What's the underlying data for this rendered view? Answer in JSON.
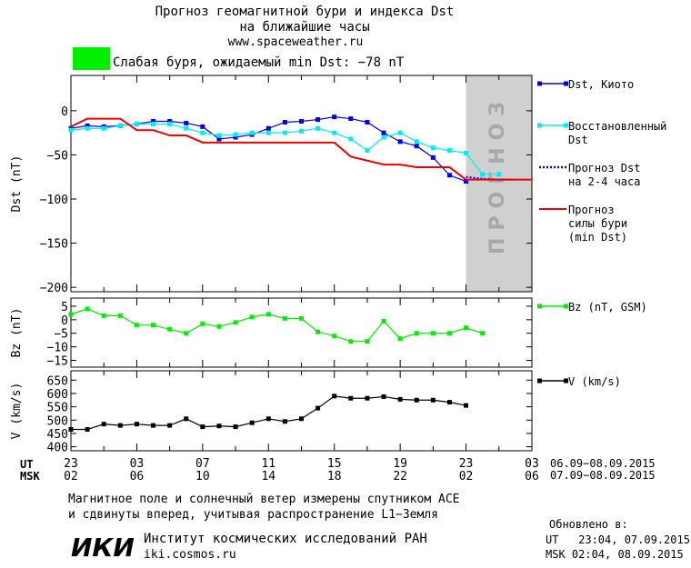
{
  "header": {
    "title_line1": "Прогноз геомагнитной бури и индекса Dst",
    "title_line2": "на ближайшие часы",
    "url": "www.spaceweather.ru",
    "status_text": "Слабая буря, ожидаемый min Dst: −78 nT",
    "status_color": "#00ee00"
  },
  "footer": {
    "note_line1": "Магнитное поле и солнечный ветер измерены спутником ACE",
    "note_line2": "и сдвинуты вперед, учитывая распространение L1−Земля",
    "institute_logo": "ИКИ",
    "institute_name": "Институт космических исследований РАН",
    "institute_url": "iki.cosmos.ru",
    "updated_label": "Обновлено в:",
    "updated_ut": "UT   23:04, 07.09.2015",
    "updated_msk": "MSK 02:04, 08.09.2015"
  },
  "time_axis": {
    "ut_label": "UT",
    "msk_label": "MSK",
    "ut_ticks": [
      "23",
      "03",
      "07",
      "11",
      "15",
      "19",
      "23",
      "03"
    ],
    "msk_ticks": [
      "02",
      "06",
      "10",
      "14",
      "18",
      "22",
      "02",
      "06"
    ],
    "ut_range": "06.09−08.09.2015",
    "msk_range": "07.09−08.09.2015"
  },
  "chart_data": [
    {
      "type": "line",
      "ylabel": "Dst (nT)",
      "xlim": [
        0,
        28
      ],
      "ylim": [
        -205,
        40
      ],
      "yticks": [
        0,
        -50,
        -100,
        -150,
        -200
      ],
      "ytick_labels": [
        "0",
        "−50",
        "−100",
        "−150",
        "−200"
      ],
      "forecast_region": {
        "x_start": 24,
        "x_end": 28,
        "label": "ПРОГНОЗ",
        "color": "#d0d0d0"
      },
      "series": [
        {
          "name": "Dst, Киото",
          "color": "#0000ee",
          "style": "solid-square",
          "x": [
            0,
            1,
            2,
            3,
            4,
            5,
            6,
            7,
            8,
            9,
            10,
            11,
            12,
            13,
            14,
            15,
            16,
            17,
            18,
            19,
            20,
            21,
            22,
            23,
            24
          ],
          "y": [
            -20,
            -17,
            -18,
            -17,
            -15,
            -12,
            -12,
            -14,
            -18,
            -32,
            -30,
            -27,
            -20,
            -13,
            -12,
            -10,
            -7,
            -9,
            -13,
            -25,
            -35,
            -40,
            -53,
            -73,
            -80
          ]
        },
        {
          "name": "Восстановленный Dst",
          "color": "#00eeee",
          "style": "solid-square",
          "x": [
            0,
            1,
            2,
            3,
            4,
            5,
            6,
            7,
            8,
            9,
            10,
            11,
            12,
            13,
            14,
            15,
            16,
            17,
            18,
            19,
            20,
            21,
            22,
            23,
            24,
            25,
            26
          ],
          "y": [
            -22,
            -20,
            -20,
            -17,
            -15,
            -15,
            -15,
            -20,
            -25,
            -28,
            -27,
            -25,
            -25,
            -25,
            -23,
            -20,
            -25,
            -32,
            -45,
            -30,
            -25,
            -35,
            -42,
            -45,
            -48,
            -72,
            -72
          ]
        },
        {
          "name": "Прогноз Dst на 2-4 часа",
          "color": "#0000ee",
          "style": "dotted",
          "x": [
            24,
            25,
            26,
            27
          ],
          "y": [
            -75,
            -77,
            -78,
            -78
          ]
        },
        {
          "name": "Прогноз силы бури (min Dst)",
          "color": "#ee0000",
          "style": "step",
          "x": [
            0,
            1,
            3,
            4,
            5,
            6,
            7,
            8,
            10,
            12,
            14,
            15,
            16,
            17,
            19,
            20,
            21,
            22,
            23,
            24,
            28
          ],
          "y": [
            -18,
            -9,
            -9,
            -22,
            -22,
            -28,
            -28,
            -36,
            -36,
            -36,
            -36,
            -36,
            -36,
            -52,
            -61,
            -61,
            -64,
            -64,
            -64,
            -78,
            -78
          ]
        }
      ]
    },
    {
      "type": "line",
      "ylabel": "Bz (nT)",
      "xlim": [
        0,
        28
      ],
      "ylim": [
        -17.5,
        8
      ],
      "yticks": [
        5,
        0,
        -5,
        -10,
        -15
      ],
      "ytick_labels": [
        "5",
        "0",
        "−5",
        "−10",
        "−15"
      ],
      "series": [
        {
          "name": "Bz (nT, GSM)",
          "color": "#00ee00",
          "style": "solid-square",
          "x": [
            0,
            1,
            2,
            3,
            4,
            5,
            6,
            7,
            8,
            9,
            10,
            11,
            12,
            13,
            14,
            15,
            16,
            17,
            18,
            19,
            20,
            21,
            22,
            23,
            24,
            25,
            26,
            27
          ],
          "y": [
            2,
            4,
            1.5,
            1.5,
            -2,
            -2,
            -3.5,
            -5,
            -1.5,
            -2.5,
            -1,
            1,
            2,
            0.5,
            0.5,
            -4.5,
            -6,
            -8,
            -8,
            -0.5,
            -7,
            -5,
            -5,
            -5,
            -3,
            -5,
            null,
            null
          ]
        }
      ]
    },
    {
      "type": "line",
      "ylabel": "V (km/s)",
      "xlim": [
        0,
        28
      ],
      "ylim": [
        385,
        685
      ],
      "yticks": [
        650,
        600,
        550,
        500,
        450,
        400
      ],
      "ytick_labels": [
        "650",
        "600",
        "550",
        "500",
        "450",
        "400"
      ],
      "series": [
        {
          "name": "V (km/s)",
          "color": "#000000",
          "style": "solid-square",
          "x": [
            0,
            1,
            2,
            3,
            4,
            5,
            6,
            7,
            8,
            9,
            10,
            11,
            12,
            13,
            14,
            15,
            16,
            17,
            18,
            19,
            20,
            21,
            22,
            23,
            24,
            25,
            26
          ],
          "y": [
            465,
            465,
            485,
            480,
            485,
            480,
            480,
            505,
            475,
            478,
            475,
            490,
            505,
            495,
            505,
            545,
            590,
            582,
            582,
            588,
            578,
            575,
            575,
            567,
            555,
            null,
            null
          ]
        }
      ]
    }
  ]
}
